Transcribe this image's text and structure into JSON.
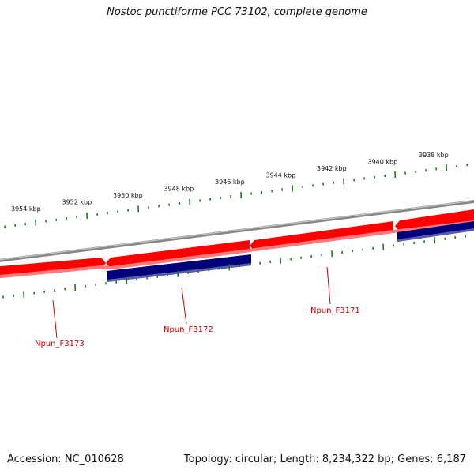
{
  "title": "Nostoc punctiforme PCC 73102, complete genome",
  "footer": {
    "accession": "Accession: NC_010628",
    "summary": "Topology: circular; Length: 8,234,322 bp; Genes: 6,187"
  },
  "colors": {
    "forward_gene": "#ff0000",
    "reverse_gene": "#00007a",
    "backbone": "#888888",
    "tick": "#1a7a1a",
    "label": "#cc0000"
  },
  "kbp_ticks": [
    "3954 kbp",
    "3952 kbp",
    "3950 kbp",
    "3948 kbp",
    "3946 kbp",
    "3944 kbp",
    "3942 kbp",
    "3940 kbp",
    "3938 kbp"
  ],
  "genes": [
    {
      "name": "Npun_F3173"
    },
    {
      "name": "Npun_F3172"
    },
    {
      "name": "Npun_F3171"
    }
  ]
}
